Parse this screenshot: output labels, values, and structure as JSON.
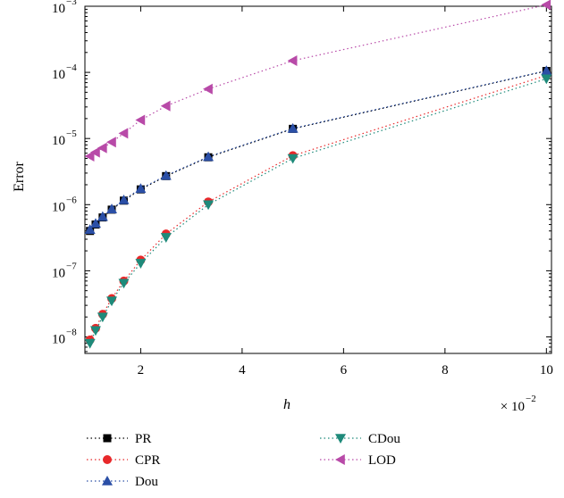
{
  "chart_data": {
    "type": "line",
    "title": "",
    "xlabel": "h",
    "ylabel": "Error",
    "x_multiplier_base": "× 10",
    "x_multiplier_exp": "−2",
    "xlim": [
      0.9,
      10.1
    ],
    "ylim_log10": [
      -8.25,
      -3.0
    ],
    "y_scale": "log",
    "x_ticks": [
      2,
      4,
      6,
      8,
      10
    ],
    "x_tick_labels": [
      "2",
      "4",
      "6",
      "8",
      "10"
    ],
    "y_ticks_log10": [
      -8,
      -7,
      -6,
      -5,
      -4,
      -3
    ],
    "y_tick_bases": [
      "10",
      "10",
      "10",
      "10",
      "10",
      "10"
    ],
    "y_tick_exps": [
      "−8",
      "−7",
      "−6",
      "−5",
      "−4",
      "−3"
    ],
    "grid": false,
    "legend_position": "bottom",
    "x": [
      1.0,
      1.111,
      1.25,
      1.429,
      1.667,
      2.0,
      2.5,
      3.333,
      5.0,
      10.0
    ],
    "series": [
      {
        "name": "PR",
        "color": "#000000",
        "marker": "square",
        "values": [
          4e-07,
          5e-07,
          6.4e-07,
          8.4e-07,
          1.15e-06,
          1.7e-06,
          2.7e-06,
          5.2e-06,
          1.4e-05,
          0.000105
        ]
      },
      {
        "name": "CPR",
        "color": "#e8282a",
        "marker": "circle",
        "values": [
          9e-09,
          1.35e-08,
          2.2e-08,
          3.8e-08,
          7e-08,
          1.45e-07,
          3.6e-07,
          1.1e-06,
          5.5e-06,
          9e-05
        ]
      },
      {
        "name": "Dou",
        "color": "#2b4fa6",
        "marker": "triangle-up",
        "values": [
          4.2e-07,
          5.2e-07,
          6.6e-07,
          8.6e-07,
          1.18e-06,
          1.75e-06,
          2.75e-06,
          5.3e-06,
          1.42e-05,
          0.000106
        ]
      },
      {
        "name": "CDou",
        "color": "#1e8a7a",
        "marker": "triangle-down",
        "values": [
          8e-09,
          1.25e-08,
          2e-08,
          3.5e-08,
          6.5e-08,
          1.3e-07,
          3.2e-07,
          1e-06,
          5e-06,
          8e-05
        ]
      },
      {
        "name": "LOD",
        "color": "#b84aa8",
        "marker": "triangle-left",
        "values": [
          5.4e-06,
          6.2e-06,
          7.2e-06,
          8.8e-06,
          1.2e-05,
          1.9e-05,
          3.1e-05,
          5.6e-05,
          0.00015,
          0.00105
        ]
      }
    ]
  }
}
